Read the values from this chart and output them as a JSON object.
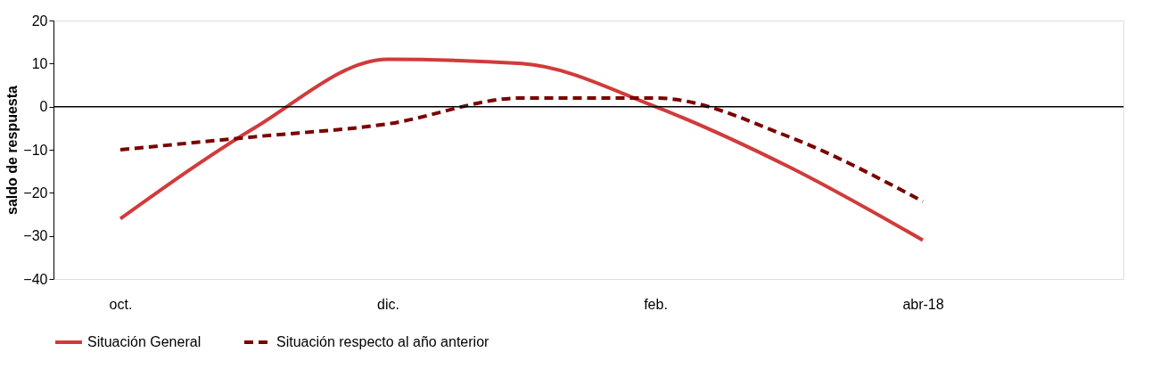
{
  "chart_data": {
    "type": "line",
    "ylabel": "saldo de respuesta",
    "categories": [
      "oct.",
      null,
      "dic.",
      null,
      "feb.",
      null,
      "abr-18",
      null
    ],
    "series": [
      {
        "name": "Situación General",
        "color": "#d13b3b",
        "line_style": "solid",
        "values": [
          -26,
          -5,
          11,
          10,
          0,
          -14,
          -31,
          null
        ]
      },
      {
        "name": "Situación respecto al año anterior",
        "color": "#7b0000",
        "line_style": "dashed",
        "values": [
          -10,
          -7,
          -4,
          2,
          2,
          -7,
          -22,
          null
        ]
      }
    ],
    "ylim": [
      -40,
      20
    ],
    "yticks": [
      -40,
      -30,
      -20,
      -10,
      0,
      10,
      20
    ],
    "grid": false,
    "legend": "bottom",
    "marker": "none",
    "ref_lines": [
      {
        "axis": "y",
        "value": 0,
        "color": "#000000"
      }
    ]
  }
}
